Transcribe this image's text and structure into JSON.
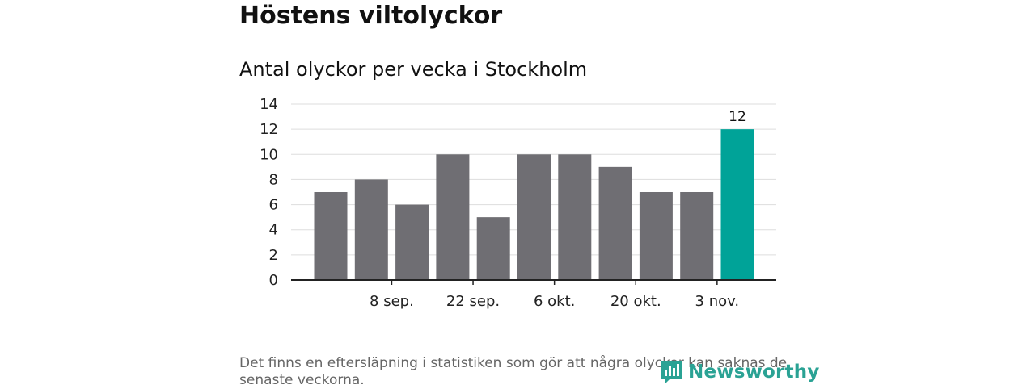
{
  "title": "Höstens viltolyckor",
  "subtitle": "Antal olyckor per vecka i Stockholm",
  "footnote": "Det finns en eftersläpning i statistiken som gör att några olyckor kan saknas de senaste veckorna.",
  "logo": {
    "text": "Newsworthy",
    "icon": "newsworthy-logo-icon"
  },
  "colors": {
    "bar": "#6f6e73",
    "highlight": "#00a398",
    "grid": "#dddddd",
    "axis": "#222222"
  },
  "chart_data": {
    "type": "bar",
    "title": "Höstens viltolyckor",
    "subtitle": "Antal olyckor per vecka i Stockholm",
    "xlabel": "",
    "ylabel": "",
    "ylim": [
      0,
      14
    ],
    "yticks": [
      0,
      2,
      4,
      6,
      8,
      10,
      12,
      14
    ],
    "xtick_labels": [
      {
        "label": "8 sep.",
        "index": 1.5
      },
      {
        "label": "22 sep.",
        "index": 3.5
      },
      {
        "label": "6 okt.",
        "index": 5.5
      },
      {
        "label": "20 okt.",
        "index": 7.5
      },
      {
        "label": "3 nov.",
        "index": 9.5
      }
    ],
    "values": [
      7,
      8,
      6,
      10,
      5,
      10,
      10,
      9,
      7,
      7,
      12
    ],
    "highlight_index": 10,
    "data_labels": [
      {
        "index": 10,
        "text": "12"
      }
    ],
    "grid": true,
    "legend": "none"
  }
}
